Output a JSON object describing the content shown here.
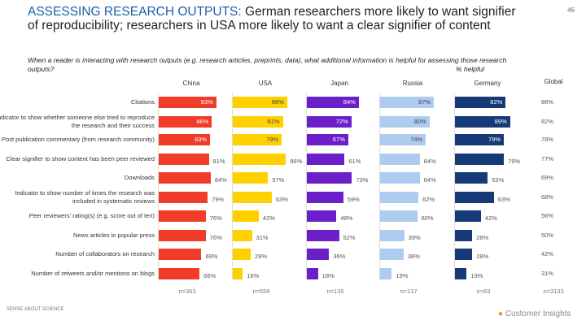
{
  "page_number": "46",
  "title_highlight": "ASSESSING RESEARCH OUTPUTS:",
  "title_rest": " German researchers more likely to want signifier of reproducibility; researchers in USA more likely to want a clear signifier of content",
  "subtitle": "When a reader is interacting with research outputs (e.g. research articles, preprints, data), what additional information is helpful for assessing those research outputs?",
  "unit_label": "% helpful",
  "logos": {
    "left": "SENSE ABOUT SCIENCE",
    "right": "Customer Insights"
  },
  "chart_data": {
    "type": "bar",
    "orientation": "horizontal",
    "categories": [
      "Citations",
      "Indicator to show whether someone else tried to reproduce the research and their success",
      "Post publication commentary (from research community)",
      "Clear signifier to show content has been peer reviewed",
      "Downloads",
      "Indicator to show number of times the research was included in systematic reviews",
      "Peer reviewers' rating(s) (e.g. score out of ten)",
      "News articles in popular press",
      "Number of collaborators on research",
      "Number of retweets and/or mentions on blogs"
    ],
    "series": [
      {
        "name": "China",
        "color": "#f03c28",
        "n": "n=363",
        "values": [
          93,
          86,
          83,
          81,
          84,
          79,
          76,
          76,
          69,
          66
        ]
      },
      {
        "name": "USA",
        "color": "#ffd000",
        "n": "n=558",
        "values": [
          88,
          81,
          79,
          86,
          57,
          63,
          42,
          31,
          29,
          16
        ]
      },
      {
        "name": "Japan",
        "color": "#6a1fc8",
        "n": "n=135",
        "values": [
          84,
          72,
          67,
          61,
          73,
          59,
          48,
          52,
          36,
          18
        ]
      },
      {
        "name": "Russia",
        "color": "#aecbf0",
        "n": "n=137",
        "values": [
          87,
          80,
          74,
          64,
          64,
          62,
          60,
          39,
          38,
          19
        ]
      },
      {
        "name": "Germany",
        "color": "#163a78",
        "n": "n=83",
        "values": [
          82,
          89,
          79,
          79,
          53,
          63,
          42,
          28,
          28,
          19
        ]
      }
    ],
    "global": {
      "name": "Global",
      "n": "n=3133",
      "values": [
        86,
        82,
        78,
        77,
        69,
        68,
        56,
        50,
        42,
        31
      ]
    },
    "xlim": [
      0,
      100
    ]
  }
}
